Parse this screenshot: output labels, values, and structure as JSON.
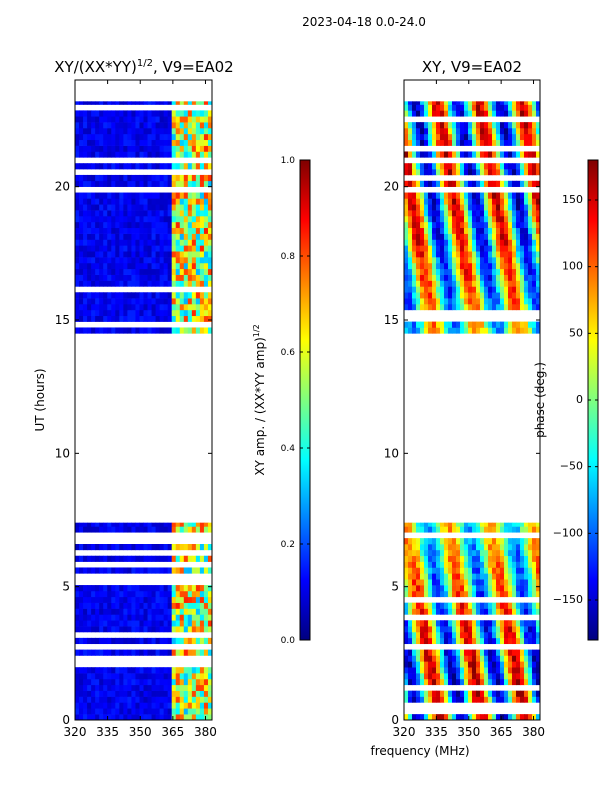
{
  "suptitle": "2023-04-18 0.0-24.0",
  "xlabel_shared": "frequency (MHz)",
  "chart_data": [
    {
      "type": "heatmap",
      "title_main": "XY/(XX*YY)",
      "title_sup": "1/2",
      "title_tail": ", V9=EA02",
      "ylabel": "UT (hours)",
      "xlim": [
        320,
        383
      ],
      "ylim": [
        0,
        24
      ],
      "xticks": [
        320,
        335,
        350,
        365,
        380
      ],
      "yticks": [
        0,
        5,
        10,
        15,
        20
      ],
      "colorbar": {
        "label_main": "XY amp. / (XX*YY amp)",
        "label_sup": "1/2",
        "range": [
          0.0,
          1.0
        ],
        "ticks": [
          "0.0",
          "0.2",
          "0.4",
          "0.6",
          "0.8",
          "1.0"
        ],
        "tick_values": [
          0.0,
          0.2,
          0.4,
          0.6,
          0.8,
          1.0
        ],
        "colormap": "jet"
      },
      "data_bands_hours": [
        [
          0,
          7.4
        ],
        [
          14.5,
          23.2
        ]
      ],
      "active_freq_range_mhz": [
        363,
        383
      ]
    },
    {
      "type": "heatmap",
      "title": "XY, V9=EA02",
      "xlim": [
        320,
        383
      ],
      "ylim": [
        0,
        24
      ],
      "xticks": [
        320,
        335,
        350,
        365,
        380
      ],
      "yticks": [
        0,
        5,
        10,
        15,
        20
      ],
      "colorbar": {
        "label": "phase (deg.)",
        "range": [
          -180,
          180
        ],
        "ticks": [
          "150",
          "100",
          "50",
          "0",
          "−50",
          "−100",
          "−150"
        ],
        "tick_values": [
          150,
          100,
          50,
          0,
          -50,
          -100,
          -150
        ],
        "colormap": "jet"
      },
      "data_bands_hours": [
        [
          0,
          7.4
        ],
        [
          14.5,
          23.2
        ]
      ]
    }
  ]
}
